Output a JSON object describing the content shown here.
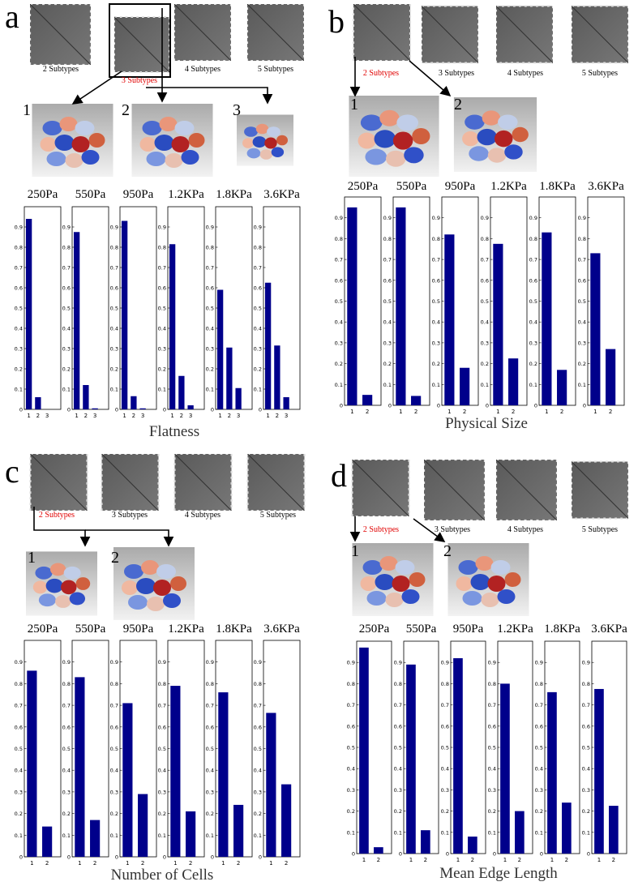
{
  "panels": [
    {
      "letter": "a",
      "subtypes": [
        {
          "label": "2 Subtypes",
          "color": "#000000"
        },
        {
          "label": "3 Subtypes",
          "color": "#e00000"
        },
        {
          "label": "4 Subtypes",
          "color": "#000000"
        },
        {
          "label": "5 Subtypes",
          "color": "#000000"
        }
      ],
      "clusters": [
        "1",
        "2",
        "3"
      ],
      "feature": "Flatness"
    },
    {
      "letter": "b",
      "subtypes": [
        {
          "label": "2 Subtypes",
          "color": "#e00000"
        },
        {
          "label": "3 Subtypes",
          "color": "#000000"
        },
        {
          "label": "4 Subtypes",
          "color": "#000000"
        },
        {
          "label": "5 Subtypes",
          "color": "#000000"
        }
      ],
      "clusters": [
        "1",
        "2"
      ],
      "feature": "Physical Size"
    },
    {
      "letter": "c",
      "subtypes": [
        {
          "label": "2 Subtypes",
          "color": "#e00000"
        },
        {
          "label": "3 Subtypes",
          "color": "#000000"
        },
        {
          "label": "4 Subtypes",
          "color": "#000000"
        },
        {
          "label": "5 Subtypes",
          "color": "#000000"
        }
      ],
      "clusters": [
        "1",
        "2"
      ],
      "feature": "Number of Cells"
    },
    {
      "letter": "d",
      "subtypes": [
        {
          "label": "2 Subtypes",
          "color": "#e00000"
        },
        {
          "label": "3 Subtypes",
          "color": "#000000"
        },
        {
          "label": "4 Subtypes",
          "color": "#000000"
        },
        {
          "label": "5 Subtypes",
          "color": "#000000"
        }
      ],
      "clusters": [
        "1",
        "2"
      ],
      "feature": "Mean Edge Length"
    }
  ],
  "chart_data": [
    {
      "type": "bar",
      "title": "250Pa",
      "categories": [
        "1",
        "2",
        "3"
      ],
      "values": [
        0.94,
        0.06,
        0
      ],
      "color": "#00008b",
      "ylim": [
        0,
        1
      ],
      "yticks": [
        0,
        0.1,
        0.2,
        0.3,
        0.4,
        0.5,
        0.6,
        0.7,
        0.8,
        0.9
      ]
    },
    {
      "type": "bar",
      "title": "550Pa",
      "categories": [
        "1",
        "2",
        "3"
      ],
      "values": [
        0.875,
        0.12,
        0.005
      ],
      "color": "#00008b",
      "ylim": [
        0,
        1
      ],
      "yticks": [
        0,
        0.1,
        0.2,
        0.3,
        0.4,
        0.5,
        0.6,
        0.7,
        0.8,
        0.9
      ]
    },
    {
      "type": "bar",
      "title": "950Pa",
      "categories": [
        "1",
        "2",
        "3"
      ],
      "values": [
        0.93,
        0.065,
        0.005
      ],
      "color": "#00008b",
      "ylim": [
        0,
        1
      ],
      "yticks": [
        0,
        0.1,
        0.2,
        0.3,
        0.4,
        0.5,
        0.6,
        0.7,
        0.8,
        0.9
      ]
    },
    {
      "type": "bar",
      "title": "1.2KPa",
      "categories": [
        "1",
        "2",
        "3"
      ],
      "values": [
        0.815,
        0.165,
        0.02
      ],
      "color": "#00008b",
      "ylim": [
        0,
        1
      ],
      "yticks": [
        0,
        0.1,
        0.2,
        0.3,
        0.4,
        0.5,
        0.6,
        0.7,
        0.8,
        0.9
      ]
    },
    {
      "type": "bar",
      "title": "1.8KPa",
      "categories": [
        "1",
        "2",
        "3"
      ],
      "values": [
        0.59,
        0.305,
        0.105
      ],
      "color": "#00008b",
      "ylim": [
        0,
        1
      ],
      "yticks": [
        0,
        0.1,
        0.2,
        0.3,
        0.4,
        0.5,
        0.6,
        0.7,
        0.8,
        0.9
      ]
    },
    {
      "type": "bar",
      "title": "3.6KPa",
      "categories": [
        "1",
        "2",
        "3"
      ],
      "values": [
        0.625,
        0.315,
        0.06
      ],
      "color": "#00008b",
      "ylim": [
        0,
        1
      ],
      "yticks": [
        0,
        0.1,
        0.2,
        0.3,
        0.4,
        0.5,
        0.6,
        0.7,
        0.8,
        0.9
      ]
    },
    {
      "type": "bar",
      "title": "250Pa",
      "categories": [
        "1",
        "2"
      ],
      "values": [
        0.95,
        0.05
      ],
      "color": "#00008b",
      "ylim": [
        0,
        1
      ],
      "yticks": [
        0,
        0.1,
        0.2,
        0.3,
        0.4,
        0.5,
        0.6,
        0.7,
        0.8,
        0.9
      ]
    },
    {
      "type": "bar",
      "title": "550Pa",
      "categories": [
        "1",
        "2"
      ],
      "values": [
        0.95,
        0.045
      ],
      "color": "#00008b",
      "ylim": [
        0,
        1
      ],
      "yticks": [
        0,
        0.1,
        0.2,
        0.3,
        0.4,
        0.5,
        0.6,
        0.7,
        0.8,
        0.9
      ]
    },
    {
      "type": "bar",
      "title": "950Pa",
      "categories": [
        "1",
        "2"
      ],
      "values": [
        0.82,
        0.18
      ],
      "color": "#00008b",
      "ylim": [
        0,
        1
      ],
      "yticks": [
        0,
        0.1,
        0.2,
        0.3,
        0.4,
        0.5,
        0.6,
        0.7,
        0.8,
        0.9
      ]
    },
    {
      "type": "bar",
      "title": "1.2KPa",
      "categories": [
        "1",
        "2"
      ],
      "values": [
        0.775,
        0.225
      ],
      "color": "#00008b",
      "ylim": [
        0,
        1
      ],
      "yticks": [
        0,
        0.1,
        0.2,
        0.3,
        0.4,
        0.5,
        0.6,
        0.7,
        0.8,
        0.9
      ]
    },
    {
      "type": "bar",
      "title": "1.8KPa",
      "categories": [
        "1",
        "2"
      ],
      "values": [
        0.83,
        0.17
      ],
      "color": "#00008b",
      "ylim": [
        0,
        1
      ],
      "yticks": [
        0,
        0.1,
        0.2,
        0.3,
        0.4,
        0.5,
        0.6,
        0.7,
        0.8,
        0.9
      ]
    },
    {
      "type": "bar",
      "title": "3.6KPa",
      "categories": [
        "1",
        "2"
      ],
      "values": [
        0.73,
        0.27
      ],
      "color": "#00008b",
      "ylim": [
        0,
        1
      ],
      "yticks": [
        0,
        0.1,
        0.2,
        0.3,
        0.4,
        0.5,
        0.6,
        0.7,
        0.8,
        0.9
      ]
    },
    {
      "type": "bar",
      "title": "250Pa",
      "categories": [
        "1",
        "2"
      ],
      "values": [
        0.86,
        0.14
      ],
      "color": "#00008b",
      "ylim": [
        0,
        1
      ],
      "yticks": [
        0,
        0.1,
        0.2,
        0.3,
        0.4,
        0.5,
        0.6,
        0.7,
        0.8,
        0.9
      ]
    },
    {
      "type": "bar",
      "title": "550Pa",
      "categories": [
        "1",
        "2"
      ],
      "values": [
        0.83,
        0.17
      ],
      "color": "#00008b",
      "ylim": [
        0,
        1
      ],
      "yticks": [
        0,
        0.1,
        0.2,
        0.3,
        0.4,
        0.5,
        0.6,
        0.7,
        0.8,
        0.9
      ]
    },
    {
      "type": "bar",
      "title": "950Pa",
      "categories": [
        "1",
        "2"
      ],
      "values": [
        0.71,
        0.29
      ],
      "color": "#00008b",
      "ylim": [
        0,
        1
      ],
      "yticks": [
        0,
        0.1,
        0.2,
        0.3,
        0.4,
        0.5,
        0.6,
        0.7,
        0.8,
        0.9
      ]
    },
    {
      "type": "bar",
      "title": "1.2KPa",
      "categories": [
        "1",
        "2"
      ],
      "values": [
        0.79,
        0.21
      ],
      "color": "#00008b",
      "ylim": [
        0,
        1
      ],
      "yticks": [
        0,
        0.1,
        0.2,
        0.3,
        0.4,
        0.5,
        0.6,
        0.7,
        0.8,
        0.9
      ]
    },
    {
      "type": "bar",
      "title": "1.8KPa",
      "categories": [
        "1",
        "2"
      ],
      "values": [
        0.76,
        0.24
      ],
      "color": "#00008b",
      "ylim": [
        0,
        1
      ],
      "yticks": [
        0,
        0.1,
        0.2,
        0.3,
        0.4,
        0.5,
        0.6,
        0.7,
        0.8,
        0.9
      ]
    },
    {
      "type": "bar",
      "title": "3.6KPa",
      "categories": [
        "1",
        "2"
      ],
      "values": [
        0.665,
        0.335
      ],
      "color": "#00008b",
      "ylim": [
        0,
        1
      ],
      "yticks": [
        0,
        0.1,
        0.2,
        0.3,
        0.4,
        0.5,
        0.6,
        0.7,
        0.8,
        0.9
      ]
    },
    {
      "type": "bar",
      "title": "250Pa",
      "categories": [
        "1",
        "2"
      ],
      "values": [
        0.97,
        0.03
      ],
      "color": "#00008b",
      "ylim": [
        0,
        1
      ],
      "yticks": [
        0,
        0.1,
        0.2,
        0.3,
        0.4,
        0.5,
        0.6,
        0.7,
        0.8,
        0.9
      ]
    },
    {
      "type": "bar",
      "title": "550Pa",
      "categories": [
        "1",
        "2"
      ],
      "values": [
        0.89,
        0.11
      ],
      "color": "#00008b",
      "ylim": [
        0,
        1
      ],
      "yticks": [
        0,
        0.1,
        0.2,
        0.3,
        0.4,
        0.5,
        0.6,
        0.7,
        0.8,
        0.9
      ]
    },
    {
      "type": "bar",
      "title": "950Pa",
      "categories": [
        "1",
        "2"
      ],
      "values": [
        0.92,
        0.08
      ],
      "color": "#00008b",
      "ylim": [
        0,
        1
      ],
      "yticks": [
        0,
        0.1,
        0.2,
        0.3,
        0.4,
        0.5,
        0.6,
        0.7,
        0.8,
        0.9
      ]
    },
    {
      "type": "bar",
      "title": "1.2KPa",
      "categories": [
        "1",
        "2"
      ],
      "values": [
        0.8,
        0.2
      ],
      "color": "#00008b",
      "ylim": [
        0,
        1
      ],
      "yticks": [
        0,
        0.1,
        0.2,
        0.3,
        0.4,
        0.5,
        0.6,
        0.7,
        0.8,
        0.9
      ]
    },
    {
      "type": "bar",
      "title": "1.8KPa",
      "categories": [
        "1",
        "2"
      ],
      "values": [
        0.76,
        0.24
      ],
      "color": "#00008b",
      "ylim": [
        0,
        1
      ],
      "yticks": [
        0,
        0.1,
        0.2,
        0.3,
        0.4,
        0.5,
        0.6,
        0.7,
        0.8,
        0.9
      ]
    },
    {
      "type": "bar",
      "title": "3.6KPa",
      "categories": [
        "1",
        "2"
      ],
      "values": [
        0.775,
        0.225
      ],
      "color": "#00008b",
      "ylim": [
        0,
        1
      ],
      "yticks": [
        0,
        0.1,
        0.2,
        0.3,
        0.4,
        0.5,
        0.6,
        0.7,
        0.8,
        0.9
      ]
    }
  ]
}
